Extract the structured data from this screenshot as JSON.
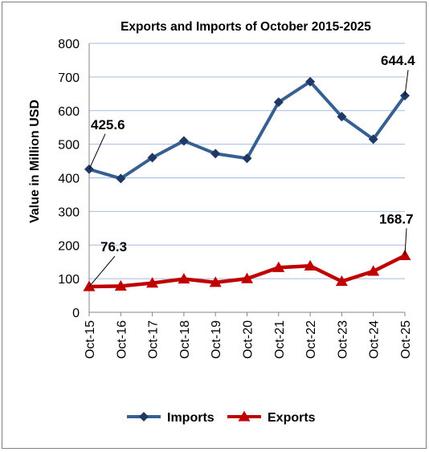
{
  "chart_data": {
    "type": "line",
    "title": "Exports and Imports of October 2015-2025",
    "ylabel": "Value in Million USD",
    "xlabel": "",
    "ylim": [
      0,
      800
    ],
    "yticks": [
      0,
      100,
      200,
      300,
      400,
      500,
      600,
      700,
      800
    ],
    "categories": [
      "Oct-15",
      "Oct-16",
      "Oct-17",
      "Oct-18",
      "Oct-19",
      "Oct-20",
      "Oct-21",
      "Oct-22",
      "Oct-23",
      "Oct-24",
      "Oct-25"
    ],
    "grid": true,
    "legend_position": "bottom",
    "series": [
      {
        "name": "Imports",
        "color": "#376092",
        "marker": "diamond",
        "values": [
          425.6,
          398,
          460,
          510,
          472,
          458,
          625,
          686,
          582,
          515,
          644.4
        ]
      },
      {
        "name": "Exports",
        "color": "#c00000",
        "marker": "triangle",
        "values": [
          76.3,
          78,
          87,
          99,
          89,
          100,
          133,
          138,
          92,
          122,
          168.7
        ]
      }
    ],
    "annotations": [
      {
        "series": 0,
        "index": 0,
        "text": "425.6"
      },
      {
        "series": 0,
        "index": 10,
        "text": "644.4"
      },
      {
        "series": 1,
        "index": 0,
        "text": "76.3"
      },
      {
        "series": 1,
        "index": 10,
        "text": "168.7"
      }
    ]
  }
}
